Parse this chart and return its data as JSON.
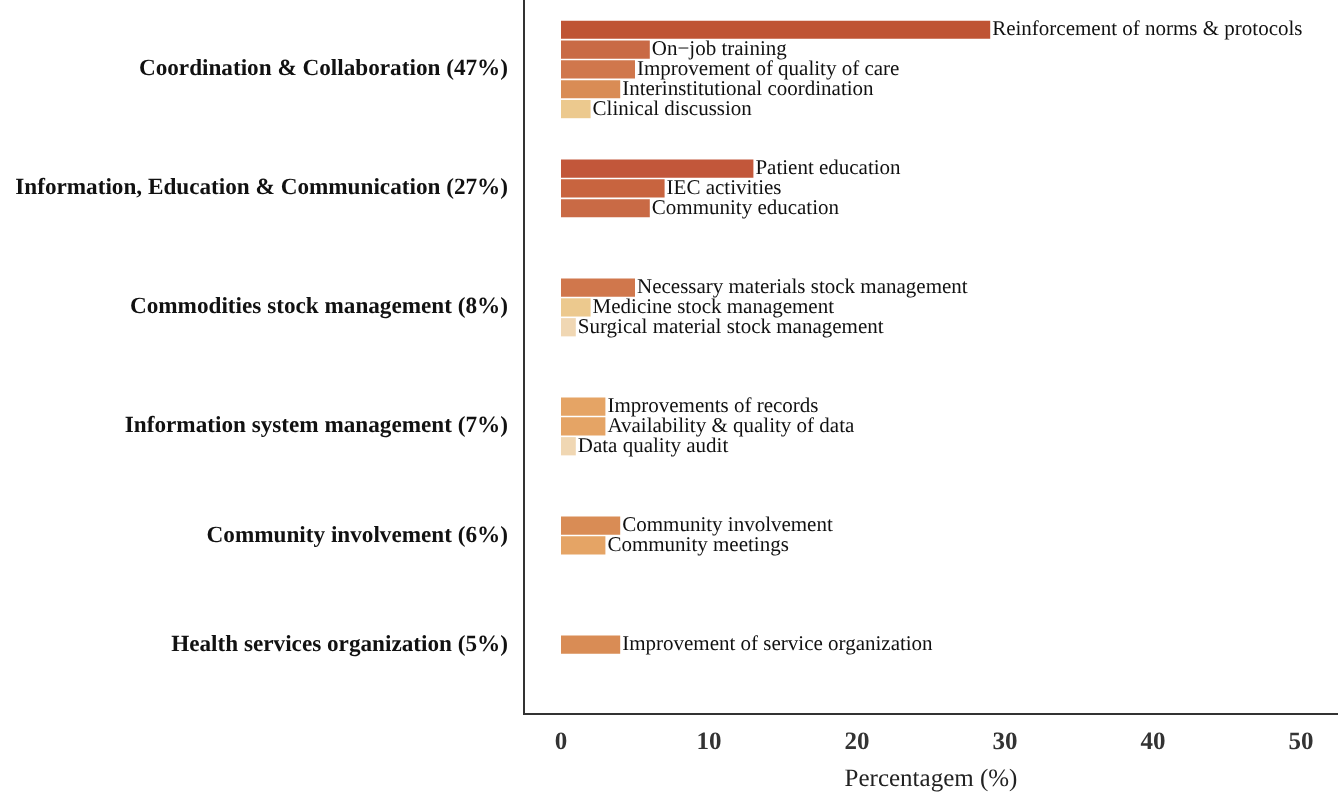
{
  "chart_data": {
    "type": "bar",
    "orientation": "horizontal",
    "xlabel": "Percentagem (%)",
    "xlim": [
      -2.5,
      52.5
    ],
    "xticks": [
      0,
      10,
      20,
      30,
      40,
      50
    ],
    "grid": false,
    "legend": false,
    "tick_labels": "x",
    "categories": [
      null,
      "Reinforcement of norms & protocols",
      "On−job training",
      "Improvement of quality of care",
      "Interinstitutional coordination",
      "Clinical discussion",
      null,
      null,
      "Patient education",
      "IEC activities",
      "Community education",
      null,
      null,
      null,
      "Necessary materials stock management",
      "Medicine stock management",
      "Surgical material stock management",
      null,
      null,
      null,
      "Improvements of records",
      "Availability & quality of data",
      "Data quality audit",
      null,
      null,
      null,
      "Community involvement",
      "Community meetings",
      null,
      null,
      null,
      null,
      "Improvement of service organization",
      null,
      null,
      null
    ],
    "values": [
      null,
      29,
      6,
      5,
      4,
      2,
      null,
      null,
      13,
      7,
      6,
      null,
      null,
      null,
      5,
      2,
      1,
      null,
      null,
      null,
      3,
      3,
      1,
      null,
      null,
      null,
      4,
      3,
      null,
      null,
      null,
      null,
      4,
      null,
      null,
      null
    ],
    "colors": [
      null,
      "#bf5434",
      "#c96a45",
      "#d0774c",
      "#d98c55",
      "#ecc98e",
      null,
      null,
      "#c2573a",
      "#c8643f",
      "#c96a45",
      null,
      null,
      null,
      "#d0774c",
      "#ecc98e",
      "#f0d7b3",
      null,
      null,
      null,
      "#e5a465",
      "#e5a465",
      "#f0d7b3",
      null,
      null,
      null,
      "#d98c55",
      "#e5a465",
      null,
      null,
      null,
      null,
      "#d98c55",
      null,
      null,
      null
    ],
    "annotations": [
      "Coordination & Collaboration (47%)",
      "Information, Education & Communication (27%)",
      "Commodities stock management (8%)",
      "Information system management (7%)",
      "Community involvement (6%)",
      "Health services organization (5%)"
    ]
  }
}
